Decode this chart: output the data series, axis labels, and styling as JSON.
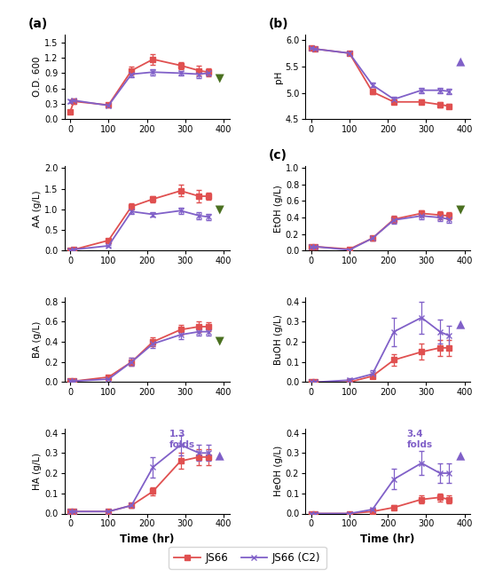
{
  "time": [
    0,
    10,
    100,
    160,
    216,
    288,
    336,
    360
  ],
  "od_js66": [
    0.15,
    0.35,
    0.28,
    0.95,
    1.17,
    1.05,
    0.95,
    0.92
  ],
  "od_c2": [
    0.35,
    0.37,
    0.27,
    0.88,
    0.92,
    0.9,
    0.88,
    0.9
  ],
  "od_js66_e": [
    0.02,
    0.04,
    0.03,
    0.07,
    0.1,
    0.07,
    0.1,
    0.08
  ],
  "od_c2_e": [
    0.03,
    0.04,
    0.03,
    0.06,
    0.06,
    0.05,
    0.07,
    0.05
  ],
  "ph_js66": [
    5.85,
    5.83,
    5.75,
    5.02,
    4.83,
    4.83,
    4.78,
    4.75
  ],
  "ph_c2": [
    5.85,
    5.83,
    5.75,
    5.15,
    4.88,
    5.05,
    5.05,
    5.03
  ],
  "ph_js66_e": [
    0.03,
    0.03,
    0.03,
    0.05,
    0.04,
    0.04,
    0.05,
    0.04
  ],
  "ph_c2_e": [
    0.03,
    0.03,
    0.03,
    0.04,
    0.04,
    0.05,
    0.05,
    0.05
  ],
  "aa_js66": [
    0.02,
    0.03,
    0.25,
    1.07,
    1.25,
    1.45,
    1.32,
    1.32
  ],
  "aa_c2": [
    0.02,
    0.03,
    0.12,
    0.95,
    0.88,
    0.97,
    0.85,
    0.82
  ],
  "aa_js66_e": [
    0.01,
    0.02,
    0.05,
    0.07,
    0.07,
    0.14,
    0.16,
    0.09
  ],
  "aa_c2_e": [
    0.01,
    0.02,
    0.03,
    0.06,
    0.05,
    0.07,
    0.08,
    0.07
  ],
  "etoh_js66": [
    0.05,
    0.05,
    0.02,
    0.15,
    0.38,
    0.45,
    0.43,
    0.42
  ],
  "etoh_c2": [
    0.05,
    0.05,
    0.01,
    0.15,
    0.37,
    0.42,
    0.4,
    0.38
  ],
  "etoh_js66_e": [
    0.01,
    0.01,
    0.01,
    0.03,
    0.04,
    0.04,
    0.05,
    0.04
  ],
  "etoh_c2_e": [
    0.01,
    0.01,
    0.01,
    0.03,
    0.04,
    0.04,
    0.04,
    0.04
  ],
  "ba_js66": [
    0.01,
    0.01,
    0.05,
    0.2,
    0.4,
    0.52,
    0.55,
    0.55
  ],
  "ba_c2": [
    0.01,
    0.01,
    0.03,
    0.2,
    0.38,
    0.47,
    0.5,
    0.5
  ],
  "ba_js66_e": [
    0.01,
    0.01,
    0.01,
    0.04,
    0.04,
    0.05,
    0.05,
    0.04
  ],
  "ba_c2_e": [
    0.01,
    0.01,
    0.01,
    0.04,
    0.04,
    0.04,
    0.04,
    0.04
  ],
  "buoh_js66": [
    0.0,
    0.0,
    0.0,
    0.03,
    0.11,
    0.15,
    0.17,
    0.17
  ],
  "buoh_c2": [
    0.0,
    0.0,
    0.01,
    0.04,
    0.25,
    0.32,
    0.25,
    0.23
  ],
  "buoh_js66_e": [
    0.0,
    0.0,
    0.0,
    0.01,
    0.03,
    0.04,
    0.04,
    0.04
  ],
  "buoh_c2_e": [
    0.0,
    0.0,
    0.01,
    0.02,
    0.07,
    0.08,
    0.06,
    0.05
  ],
  "ha_js66": [
    0.01,
    0.01,
    0.01,
    0.04,
    0.11,
    0.26,
    0.28,
    0.28
  ],
  "ha_c2": [
    0.01,
    0.01,
    0.01,
    0.04,
    0.23,
    0.34,
    0.3,
    0.3
  ],
  "ha_js66_e": [
    0.01,
    0.01,
    0.01,
    0.01,
    0.02,
    0.04,
    0.04,
    0.04
  ],
  "ha_c2_e": [
    0.01,
    0.01,
    0.01,
    0.01,
    0.05,
    0.05,
    0.04,
    0.04
  ],
  "heoh_js66": [
    0.0,
    0.0,
    0.0,
    0.01,
    0.03,
    0.07,
    0.08,
    0.07
  ],
  "heoh_c2": [
    0.0,
    0.0,
    0.0,
    0.02,
    0.17,
    0.25,
    0.2,
    0.2
  ],
  "heoh_js66_e": [
    0.0,
    0.0,
    0.0,
    0.01,
    0.01,
    0.02,
    0.02,
    0.02
  ],
  "heoh_c2_e": [
    0.0,
    0.0,
    0.0,
    0.01,
    0.05,
    0.06,
    0.05,
    0.05
  ],
  "color_js66": "#e05050",
  "color_c2": "#8060c8",
  "color_green": "#4a7020",
  "color_purple": "#8060c8",
  "ha_fold_text": "1.3\nfolds",
  "heoh_fold_text": "3.4\nfolds"
}
